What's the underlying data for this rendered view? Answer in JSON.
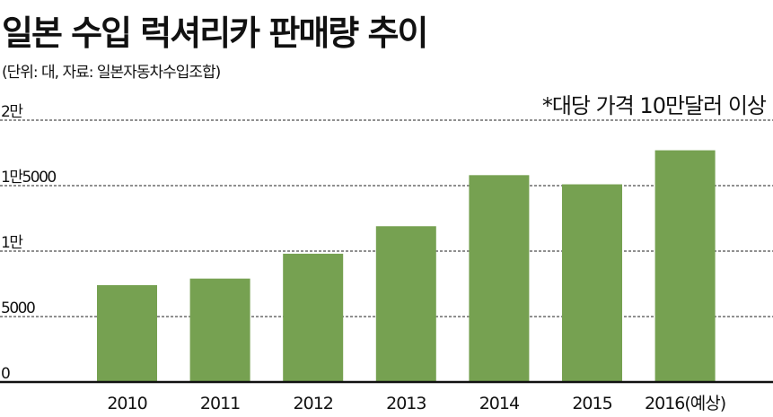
{
  "chart_data": {
    "type": "bar",
    "title": "일본 수입 럭셔리카 판매량 추이",
    "subtitle": "(단위: 대, 자료: 일본자동차수입조합)",
    "annotation": "*대당 가격 10만달러 이상",
    "categories": [
      "2010",
      "2011",
      "2012",
      "2013",
      "2014",
      "2015",
      "2016(예상)"
    ],
    "values": [
      7400,
      7900,
      9800,
      11900,
      15800,
      15100,
      17700
    ],
    "ylim": [
      0,
      20000
    ],
    "yticks": [
      {
        "value": 0,
        "label": "0"
      },
      {
        "value": 5000,
        "label": "5000"
      },
      {
        "value": 10000,
        "label": "1만"
      },
      {
        "value": 15000,
        "label": "1만5000"
      },
      {
        "value": 20000,
        "label": "2만"
      }
    ],
    "grid": true,
    "bar_color": "#76a151",
    "xlabel": "",
    "ylabel": ""
  }
}
